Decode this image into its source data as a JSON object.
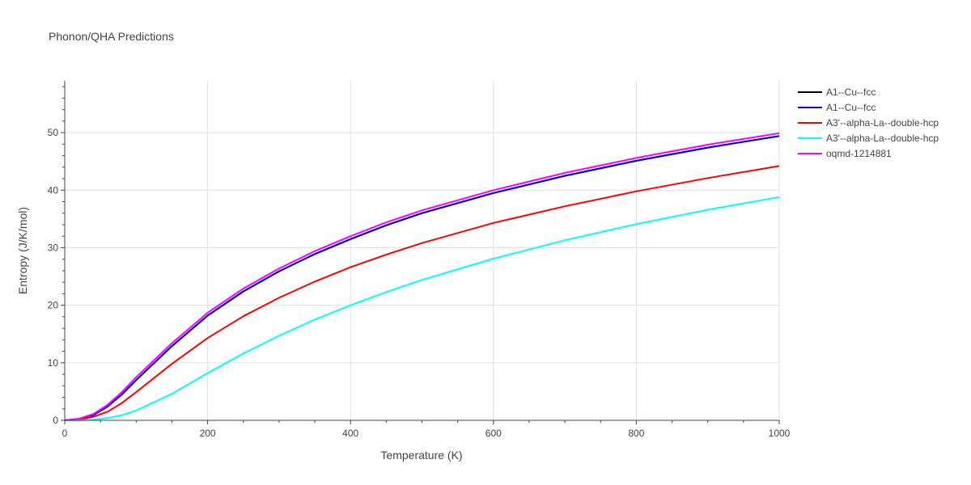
{
  "chart_data": {
    "type": "line",
    "title": "Phonon/QHA Predictions",
    "xlabel": "Temperature (K)",
    "ylabel": "Entropy (J/K/mol)",
    "xlim": [
      0,
      1000
    ],
    "ylim": [
      0,
      59
    ],
    "xticks": [
      0,
      200,
      400,
      600,
      800,
      1000
    ],
    "yticks": [
      0,
      10,
      20,
      30,
      40,
      50
    ],
    "grid": true,
    "legend_position": "top-right",
    "series": [
      {
        "name": "A1--Cu--fcc",
        "color": "#000000",
        "x": [
          0,
          20,
          40,
          60,
          80,
          100,
          150,
          200,
          250,
          300,
          350,
          400,
          450,
          500,
          600,
          700,
          800,
          900,
          1000
        ],
        "y": [
          0,
          0.2,
          0.9,
          2.4,
          4.5,
          7.0,
          12.9,
          18.2,
          22.4,
          25.9,
          28.9,
          31.5,
          33.9,
          36.0,
          39.5,
          42.5,
          45.1,
          47.4,
          49.4
        ]
      },
      {
        "name": "A1--Cu--fcc",
        "color": "#0000ff",
        "x": [
          0,
          20,
          40,
          60,
          80,
          100,
          150,
          200,
          250,
          300,
          350,
          400,
          450,
          500,
          600,
          700,
          800,
          900,
          1000
        ],
        "y": [
          0,
          0.2,
          0.9,
          2.4,
          4.5,
          7.0,
          12.9,
          18.2,
          22.4,
          25.9,
          28.9,
          31.5,
          33.9,
          36.0,
          39.5,
          42.5,
          45.1,
          47.4,
          49.4
        ]
      },
      {
        "name": "A3'--alpha-La--double-hcp",
        "color": "#ff0000",
        "x": [
          0,
          20,
          40,
          60,
          80,
          100,
          150,
          200,
          250,
          300,
          350,
          400,
          450,
          500,
          600,
          700,
          800,
          900,
          1000
        ],
        "y": [
          0,
          0.1,
          0.6,
          1.5,
          3.0,
          4.9,
          9.8,
          14.3,
          18.1,
          21.3,
          24.1,
          26.6,
          28.8,
          30.8,
          34.3,
          37.2,
          39.8,
          42.1,
          44.2
        ]
      },
      {
        "name": "A3'--alpha-La--double-hcp",
        "color": "#00ffff",
        "x": [
          0,
          20,
          40,
          60,
          80,
          100,
          150,
          200,
          250,
          300,
          350,
          400,
          450,
          500,
          600,
          700,
          800,
          900,
          1000
        ],
        "y": [
          0,
          0.0,
          0.1,
          0.4,
          0.9,
          1.7,
          4.6,
          8.2,
          11.6,
          14.7,
          17.5,
          20.0,
          22.3,
          24.4,
          28.1,
          31.3,
          34.1,
          36.6,
          38.8
        ]
      },
      {
        "name": "oqmd-1214881",
        "color": "#ff00ff",
        "x": [
          0,
          20,
          40,
          60,
          80,
          100,
          150,
          200,
          250,
          300,
          350,
          400,
          450,
          500,
          600,
          700,
          800,
          900,
          1000
        ],
        "y": [
          0,
          0.3,
          1.1,
          2.7,
          4.9,
          7.5,
          13.4,
          18.7,
          22.9,
          26.4,
          29.4,
          32.0,
          34.4,
          36.5,
          40.0,
          43.0,
          45.6,
          47.9,
          49.9
        ]
      }
    ]
  }
}
